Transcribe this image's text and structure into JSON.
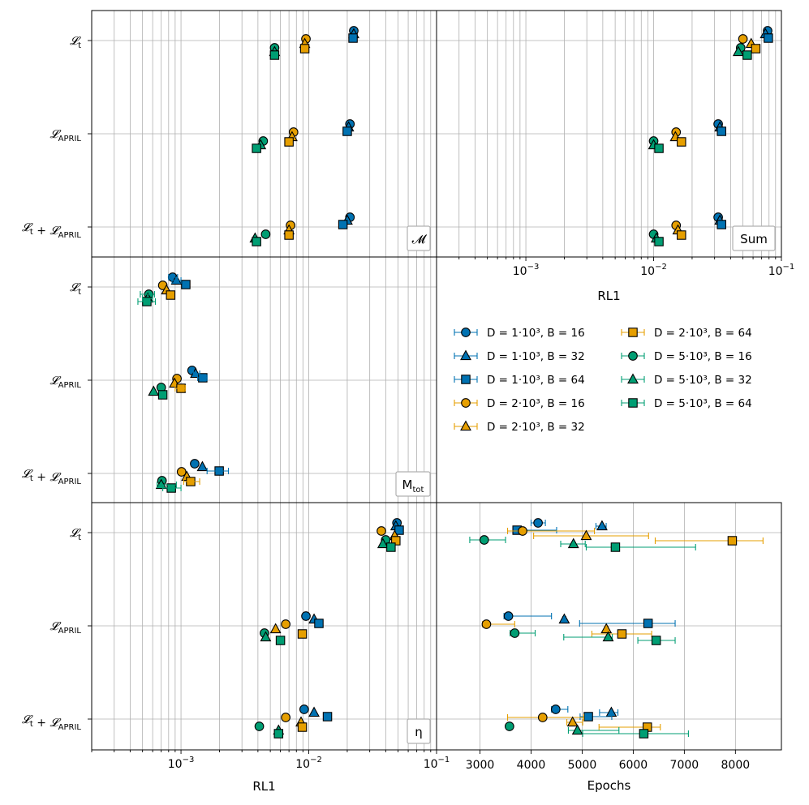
{
  "chart_data": {
    "type": "scatter",
    "colors": {
      "1e3": "#0072b2",
      "2e3": "#e69f00",
      "5e3": "#009e73"
    },
    "series": [
      {
        "name": "D = 1·10³, B = 16",
        "D": "1e3",
        "marker": "circle",
        "color": "#0072b2"
      },
      {
        "name": "D = 1·10³, B = 32",
        "D": "1e3",
        "marker": "triangle",
        "color": "#0072b2"
      },
      {
        "name": "D = 1·10³, B = 64",
        "D": "1e3",
        "marker": "square",
        "color": "#0072b2"
      },
      {
        "name": "D = 2·10³, B = 16",
        "D": "2e3",
        "marker": "circle",
        "color": "#e69f00"
      },
      {
        "name": "D = 2·10³, B = 32",
        "D": "2e3",
        "marker": "triangle",
        "color": "#e69f00"
      },
      {
        "name": "D = 2·10³, B = 64",
        "D": "2e3",
        "marker": "square",
        "color": "#e69f00"
      },
      {
        "name": "D = 5·10³, B = 16",
        "D": "5e3",
        "marker": "circle",
        "color": "#009e73"
      },
      {
        "name": "D = 5·10³, B = 32",
        "D": "5e3",
        "marker": "triangle",
        "color": "#009e73"
      },
      {
        "name": "D = 5·10³, B = 64",
        "D": "5e3",
        "marker": "square",
        "color": "#009e73"
      }
    ],
    "categories": [
      "L_t",
      "L_APRIL",
      "L_t + L_APRIL"
    ],
    "xlabel_rl1": "RL1",
    "xlabel_epochs": "Epochs",
    "xlim_rl1": [
      0.0002,
      0.1
    ],
    "xlim_epochs": [
      2150,
      8900
    ],
    "rl1_ticks": [
      "10^-3",
      "10^-2",
      "10^-1"
    ],
    "epoch_ticks": [
      3000,
      4000,
      5000,
      6000,
      7000,
      8000
    ],
    "panels": [
      {
        "label": "𝓜",
        "points": [
          [
            0.0225,
            0.0225,
            0.0222,
            0.0095,
            0.0093,
            0.0093,
            0.0054,
            0.0054,
            0.0054
          ],
          [
            0.021,
            0.0205,
            0.02,
            0.0076,
            0.0074,
            0.007,
            0.0044,
            0.0042,
            0.0039
          ],
          [
            0.021,
            0.02,
            0.0185,
            0.0072,
            0.007,
            0.007,
            0.0046,
            0.0038,
            0.0039
          ]
        ]
      },
      {
        "label": "Sum",
        "points": [
          [
            0.078,
            0.075,
            0.079,
            0.05,
            0.058,
            0.063,
            0.048,
            0.046,
            0.054
          ],
          [
            0.032,
            0.033,
            0.034,
            0.015,
            0.0148,
            0.0165,
            0.01,
            0.01,
            0.011
          ],
          [
            0.032,
            0.033,
            0.034,
            0.015,
            0.0155,
            0.0165,
            0.01,
            0.0105,
            0.011
          ]
        ]
      },
      {
        "label": "M_tot",
        "points": [
          [
            0.00086,
            0.00092,
            0.00109,
            0.00072,
            0.00077,
            0.00083,
            0.00056,
            0.00055,
            0.00054
          ],
          [
            0.00122,
            0.0013,
            0.00148,
            0.00093,
            0.00089,
            0.001,
            0.0007,
            0.00061,
            0.00072
          ],
          [
            0.00128,
            0.00147,
            0.00199,
            0.00101,
            0.00111,
            0.00119,
            0.00071,
            0.0007,
            0.00084
          ]
        ]
      },
      {
        "label": "η",
        "points": [
          [
            0.049,
            0.048,
            0.051,
            0.037,
            0.047,
            0.048,
            0.04,
            0.038,
            0.044
          ],
          [
            0.0095,
            0.011,
            0.012,
            0.0066,
            0.0055,
            0.0089,
            0.0045,
            0.0046,
            0.006
          ],
          [
            0.0092,
            0.011,
            0.014,
            0.0066,
            0.0087,
            0.0089,
            0.0041,
            0.0058,
            0.0058
          ]
        ]
      }
    ],
    "epochs": [
      [
        4137,
        5389,
        3726,
        3834,
        5080,
        7938,
        3083,
        4830,
        5651
      ],
      [
        3557,
        4650,
        6290,
        3126,
        5473,
        5778,
        3680,
        5509,
        6449
      ],
      [
        4482,
        5571,
        5121,
        4227,
        4813,
        6275,
        3577,
        4908,
        6206
      ]
    ],
    "epoch_err": [
      [
        [
          4000,
          4280
        ],
        [
          5270,
          5470
        ],
        [
          3650,
          4500
        ],
        [
          3540,
          5240
        ],
        [
          4050,
          6300
        ],
        [
          6430,
          8540
        ],
        [
          2800,
          3500
        ],
        [
          4580,
          5060
        ],
        [
          5080,
          7220
        ]
      ],
      [
        [
          3470,
          4400
        ],
        [
          4620,
          4680
        ],
        [
          4950,
          6820
        ],
        [
          3050,
          3680
        ],
        [
          5440,
          5510
        ],
        [
          5190,
          6360
        ],
        [
          3590,
          4080
        ],
        [
          4640,
          5590
        ],
        [
          6090,
          6820
        ]
      ],
      [
        [
          4400,
          4720
        ],
        [
          5340,
          5700
        ],
        [
          4960,
          5580
        ],
        [
          3540,
          5030
        ],
        [
          4700,
          5010
        ],
        [
          5330,
          6530
        ],
        [
          3570,
          3590
        ],
        [
          4730,
          5720
        ],
        [
          5010,
          7080
        ]
      ]
    ]
  }
}
